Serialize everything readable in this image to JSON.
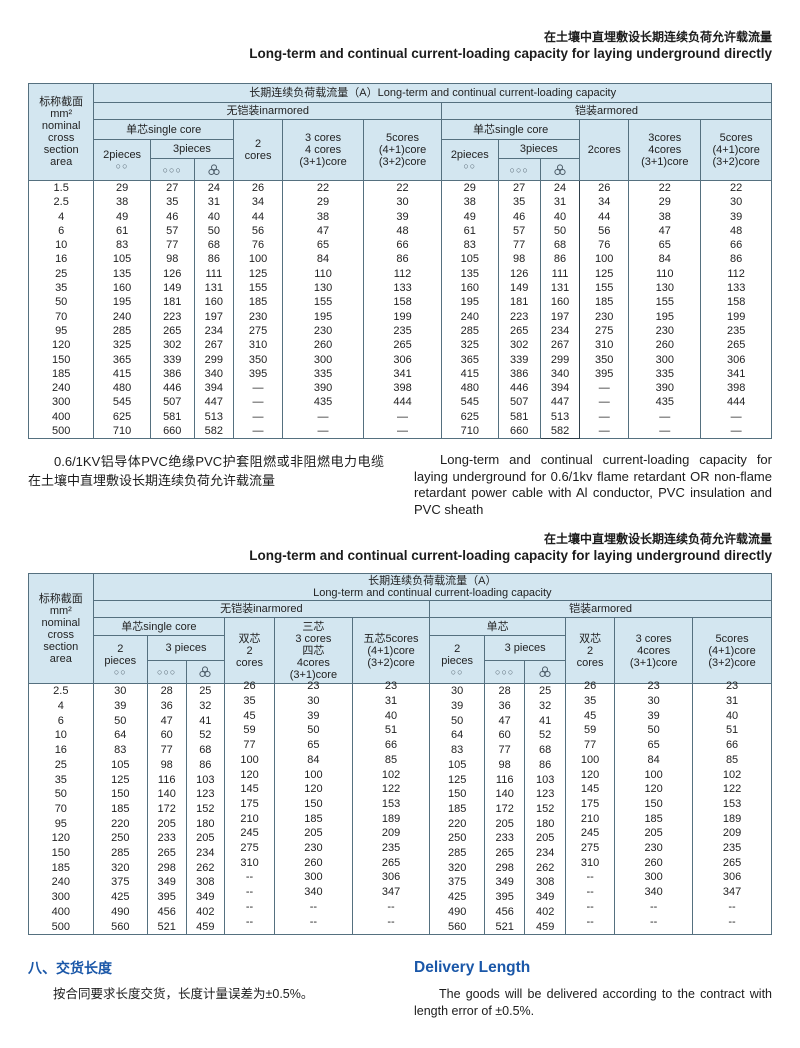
{
  "page": {
    "title": {
      "zh": "在土壤中直埋敷设长期连续负荷允许载流量",
      "en": "Long-term and continual current-loading capacity for laying underground directly"
    },
    "note_zh": "0.6/1KV铝导体PVC绝缘PVC护套阻燃或非阻燃电力电缆在土壤中直埋敷设长期连续负荷允许载流量",
    "note_en": "Long-term and continual current-loading capacity for laying underground for 0.6/1kv flame retardant OR non-flame retardant power cable with Al conductor, PVC insulation and PVC sheath",
    "delivery": {
      "zh_heading": "八、交货长度",
      "en_heading": "Delivery Length",
      "zh_text": "按合同要求长度交货，长度计量误差为±0.5%。",
      "en_text": "The goods will be delivered according to the contract with length error of ±0.5%."
    },
    "colors": {
      "accent_blue": "#1a57a8",
      "header_bg": "#d3e6f0"
    }
  },
  "icons": {
    "circles2": "○○",
    "circles3": "○○○"
  },
  "table1": {
    "col1": [
      "标称截面",
      "mm²",
      "nominal",
      "cross",
      "section",
      "area"
    ],
    "span_title": "长期连续负荷载流量（A）Long-term and continual current-loading capacity",
    "unarmored": "无铠装inarmored",
    "armored": "铠装armored",
    "single_core": "单芯single core",
    "pieces2": "2pieces",
    "pieces3": "3pieces",
    "cores2_u": [
      "2",
      "cores"
    ],
    "cores2_a": [
      "2cores"
    ],
    "cores34_u": [
      "3 cores",
      "4 cores",
      "(3+1)core"
    ],
    "cores34_a": [
      "3cores",
      "4cores",
      "(3+1)core"
    ],
    "cores5": [
      "5cores",
      "(4+1)core",
      "(3+2)core"
    ],
    "rows": [
      [
        "1.5",
        29,
        27,
        24,
        26,
        22,
        22,
        29,
        27,
        24,
        26,
        22,
        22
      ],
      [
        "2.5",
        38,
        35,
        31,
        34,
        29,
        30,
        38,
        35,
        31,
        34,
        29,
        30
      ],
      [
        "4",
        49,
        46,
        40,
        44,
        38,
        39,
        49,
        46,
        40,
        44,
        38,
        39
      ],
      [
        "6",
        61,
        57,
        50,
        56,
        47,
        48,
        61,
        57,
        50,
        56,
        47,
        48
      ],
      [
        "10",
        83,
        77,
        68,
        76,
        65,
        66,
        83,
        77,
        68,
        76,
        65,
        66
      ],
      [
        "16",
        105,
        98,
        86,
        100,
        84,
        86,
        105,
        98,
        86,
        100,
        84,
        86
      ],
      [
        "25",
        135,
        126,
        111,
        125,
        110,
        112,
        135,
        126,
        111,
        125,
        110,
        112
      ],
      [
        "35",
        160,
        149,
        131,
        155,
        130,
        133,
        160,
        149,
        131,
        155,
        130,
        133
      ],
      [
        "50",
        195,
        181,
        160,
        185,
        155,
        158,
        195,
        181,
        160,
        185,
        155,
        158
      ],
      [
        "70",
        240,
        223,
        197,
        230,
        195,
        199,
        240,
        223,
        197,
        230,
        195,
        199
      ],
      [
        "95",
        285,
        265,
        234,
        275,
        230,
        235,
        285,
        265,
        234,
        275,
        230,
        235
      ],
      [
        "120",
        325,
        302,
        267,
        310,
        260,
        265,
        325,
        302,
        267,
        310,
        260,
        265
      ],
      [
        "150",
        365,
        339,
        299,
        350,
        300,
        306,
        365,
        339,
        299,
        350,
        300,
        306
      ],
      [
        "185",
        415,
        386,
        340,
        395,
        335,
        341,
        415,
        386,
        340,
        395,
        335,
        341
      ],
      [
        "240",
        480,
        446,
        394,
        "—",
        390,
        398,
        480,
        446,
        394,
        "—",
        390,
        398
      ],
      [
        "300",
        545,
        507,
        447,
        "—",
        435,
        444,
        545,
        507,
        447,
        "—",
        435,
        444
      ],
      [
        "400",
        625,
        581,
        513,
        "—",
        "—",
        "—",
        625,
        581,
        513,
        "—",
        "—",
        "—"
      ],
      [
        "500",
        710,
        660,
        582,
        "—",
        "—",
        "—",
        710,
        660,
        582,
        "—",
        "—",
        "—"
      ]
    ]
  },
  "table2": {
    "col1": [
      "标称截面",
      "mm²",
      "nominal",
      "cross",
      "section",
      "area"
    ],
    "span_title_zh": "长期连续负荷载流量（A）",
    "span_title_en": "Long-term and continual current-loading capacity",
    "unarmored": "无铠装inarmored",
    "armored": "铠装armored",
    "single_core_u": "单芯single core",
    "single_core_a": "单芯",
    "pieces2": [
      "2",
      "pieces"
    ],
    "pieces3": "3 pieces",
    "cores2": [
      "双芯",
      "2",
      "cores"
    ],
    "cores34_u": [
      "三芯",
      "3 cores",
      "四芯",
      "4cores",
      "(3+1)core"
    ],
    "cores34_a": [
      "3 cores",
      "4cores",
      "(3+1)core"
    ],
    "cores5_u": [
      "五芯5cores",
      "(4+1)core",
      "(3+2)core"
    ],
    "cores5_a": [
      "5cores",
      "(4+1)core",
      "(3+2)core"
    ],
    "rows": [
      [
        "2.5",
        30,
        28,
        25,
        26,
        23,
        23,
        30,
        28,
        25,
        26,
        23,
        23
      ],
      [
        "4",
        39,
        36,
        32,
        35,
        30,
        31,
        39,
        36,
        32,
        35,
        30,
        31
      ],
      [
        "6",
        50,
        47,
        41,
        45,
        39,
        40,
        50,
        47,
        41,
        45,
        39,
        40
      ],
      [
        "10",
        64,
        60,
        52,
        59,
        50,
        51,
        64,
        60,
        52,
        59,
        50,
        51
      ],
      [
        "16",
        83,
        77,
        68,
        77,
        65,
        66,
        83,
        77,
        68,
        77,
        65,
        66
      ],
      [
        "25",
        105,
        98,
        86,
        100,
        84,
        85,
        105,
        98,
        86,
        100,
        84,
        85
      ],
      [
        "35",
        125,
        116,
        103,
        120,
        100,
        102,
        125,
        116,
        103,
        120,
        100,
        102
      ],
      [
        "50",
        150,
        140,
        123,
        145,
        120,
        122,
        150,
        140,
        123,
        145,
        120,
        122
      ],
      [
        "70",
        185,
        172,
        152,
        175,
        150,
        153,
        185,
        172,
        152,
        175,
        150,
        153
      ],
      [
        "95",
        220,
        205,
        180,
        210,
        185,
        189,
        220,
        205,
        180,
        210,
        185,
        189
      ],
      [
        "120",
        250,
        233,
        205,
        245,
        205,
        209,
        250,
        233,
        205,
        245,
        205,
        209
      ],
      [
        "150",
        285,
        265,
        234,
        275,
        230,
        235,
        285,
        265,
        234,
        275,
        230,
        235
      ],
      [
        "185",
        320,
        298,
        262,
        310,
        260,
        265,
        320,
        298,
        262,
        310,
        260,
        265
      ],
      [
        "240",
        375,
        349,
        308,
        "--",
        300,
        306,
        375,
        349,
        308,
        "--",
        300,
        306
      ],
      [
        "300",
        425,
        395,
        349,
        "--",
        340,
        347,
        425,
        395,
        349,
        "--",
        340,
        347
      ],
      [
        "400",
        490,
        456,
        402,
        "--",
        "--",
        "--",
        490,
        456,
        402,
        "--",
        "--",
        "--"
      ],
      [
        "500",
        560,
        521,
        459,
        "--",
        "--",
        "--",
        560,
        521,
        459,
        "--",
        "--",
        "--"
      ]
    ]
  }
}
